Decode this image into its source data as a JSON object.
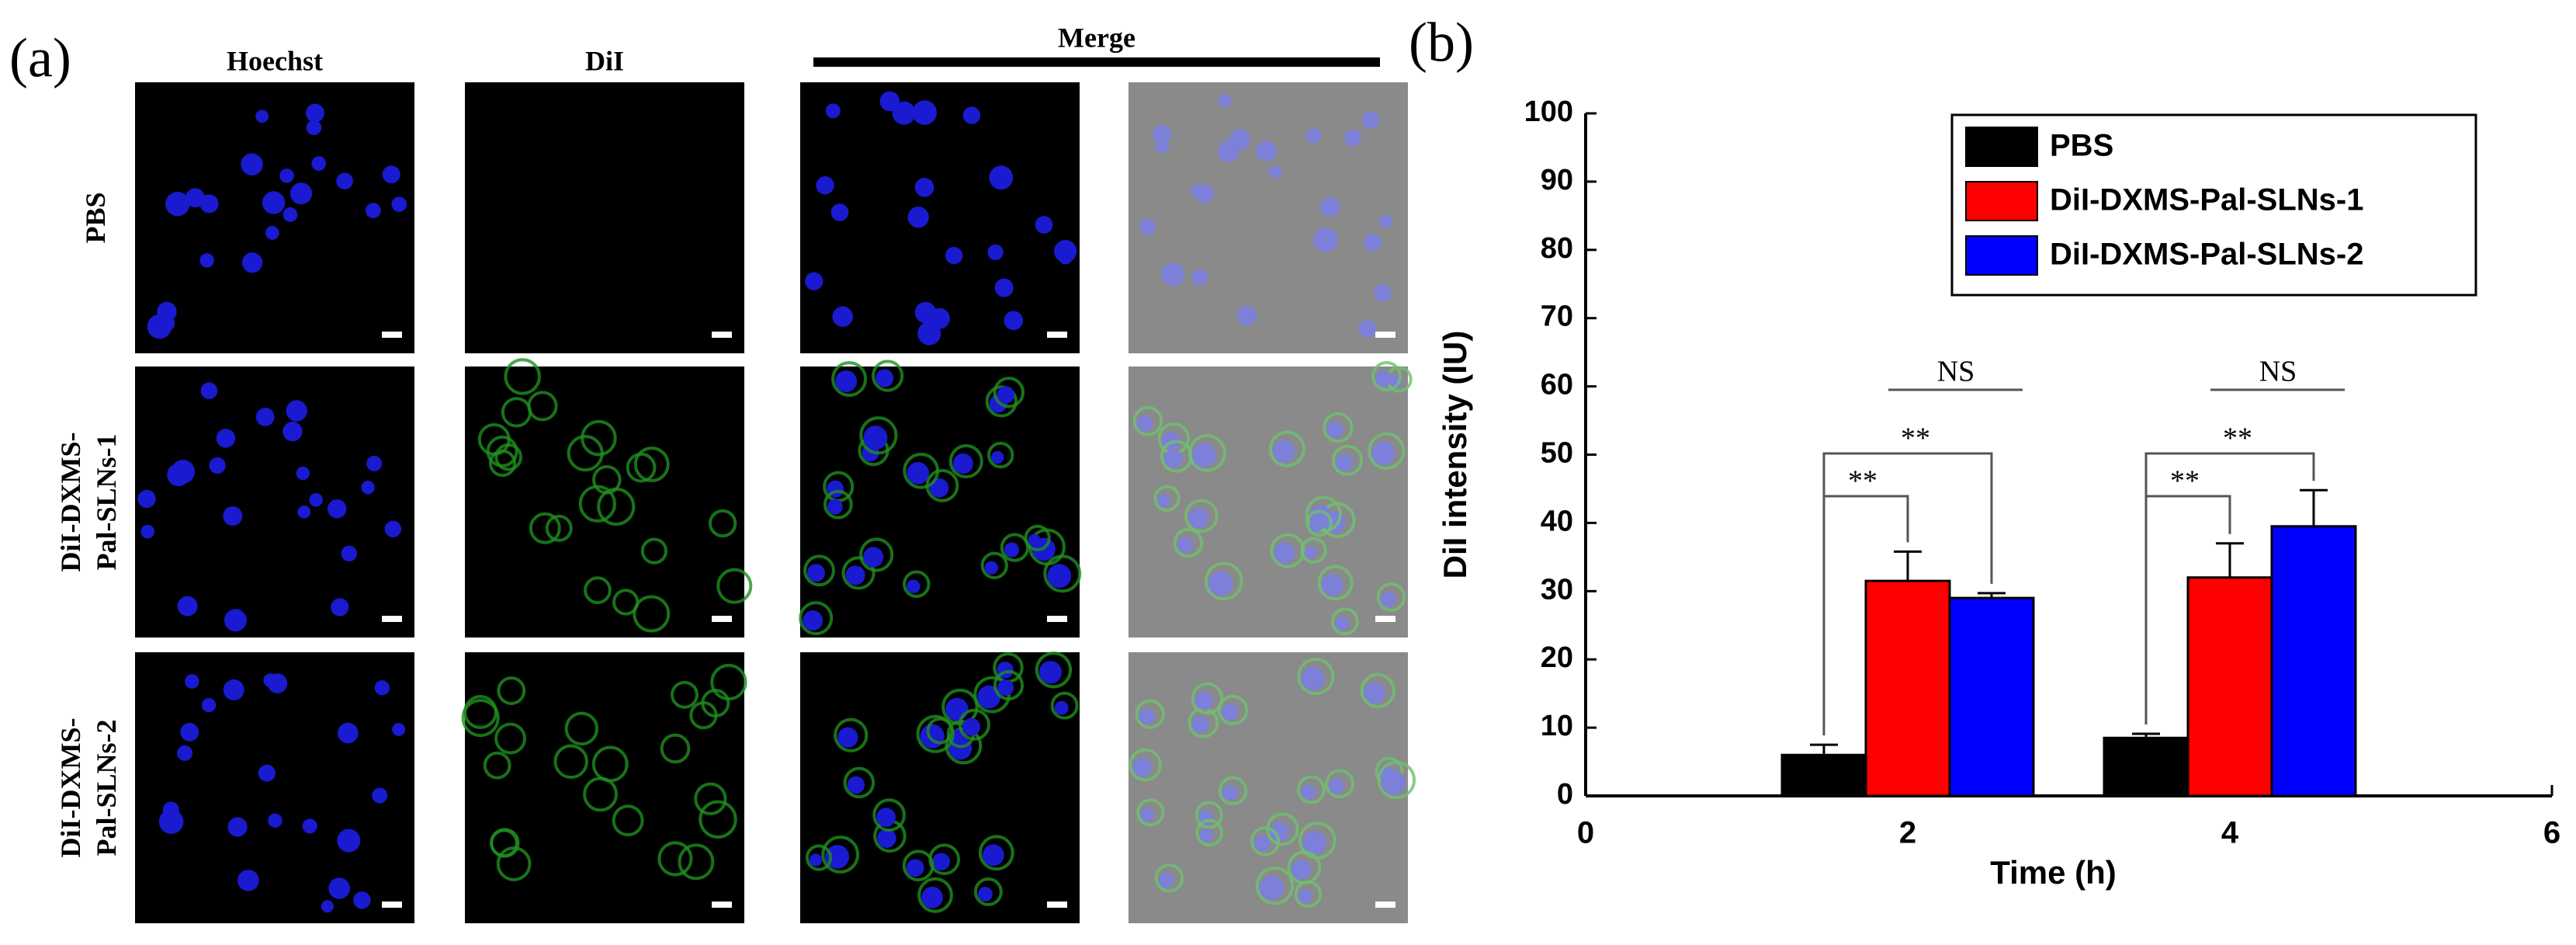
{
  "panel_a": {
    "label": "(a)",
    "columns": [
      "Hoechst",
      "DiI",
      "Merge"
    ],
    "rows": [
      [
        "PBS"
      ],
      [
        "DiI-DXMS-",
        "Pal-SLNs-1"
      ],
      [
        "DiI-DXMS-",
        "Pal-SLNs-2"
      ]
    ]
  },
  "chart_data": {
    "type": "bar",
    "label": "(b)",
    "xlabel": "Time (h)",
    "ylabel": "DiI intensity (IU)",
    "x": [
      2,
      4
    ],
    "xlim": [
      0,
      6
    ],
    "xticks": [
      0,
      2,
      4,
      6
    ],
    "ylim": [
      0,
      100
    ],
    "yticks": [
      0,
      10,
      20,
      30,
      40,
      50,
      60,
      70,
      80,
      90,
      100
    ],
    "series": [
      {
        "name": "PBS",
        "color": "#000000",
        "values": [
          6,
          8.5
        ],
        "errors": [
          1.5,
          0.6
        ]
      },
      {
        "name": "DiI-DXMS-Pal-SLNs-1",
        "color": "#ff0000",
        "values": [
          31.5,
          32
        ],
        "errors": [
          4.3,
          5
        ]
      },
      {
        "name": "DiI-DXMS-Pal-SLNs-2",
        "color": "#0000ff",
        "values": [
          29,
          39.5
        ],
        "errors": [
          0.7,
          5.3
        ]
      }
    ],
    "annotations": [
      "NS",
      "**"
    ],
    "legend": "upper right"
  }
}
